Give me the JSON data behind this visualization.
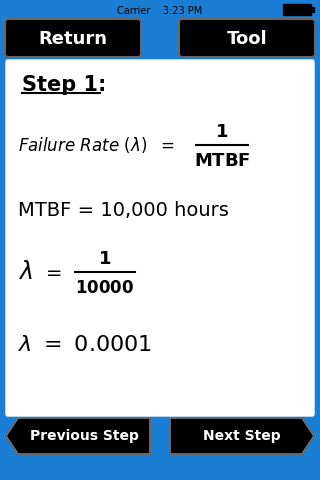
{
  "bg_color": "#1a7fd4",
  "white_panel_color": "#ffffff",
  "black_color": "#000000",
  "status_bar_text": "Carrier    3:23 PM",
  "btn_return": "Return",
  "btn_tool": "Tool",
  "step_label": "Step 1:",
  "mtbf_line": "MTBF = 10,000 hours",
  "btn_prev": "Previous Step",
  "btn_next": "Next Step",
  "fig_width": 3.2,
  "fig_height": 4.8,
  "dpi": 100
}
